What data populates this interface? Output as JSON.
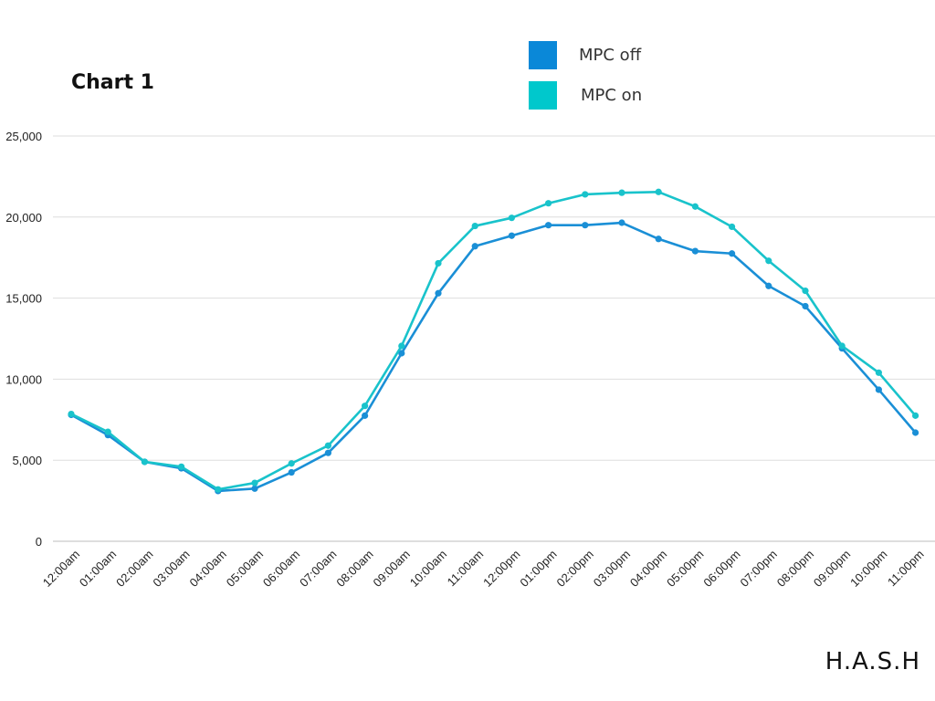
{
  "chart_data": {
    "type": "line",
    "title": "Chart 1",
    "xlabel": "",
    "ylabel": "",
    "ylim": [
      0,
      25000
    ],
    "yticks": [
      0,
      5000,
      10000,
      15000,
      20000,
      25000
    ],
    "ytick_labels": [
      "0",
      "5,000",
      "10,000",
      "15,000",
      "20,000",
      "25,000"
    ],
    "grid": true,
    "legend_position": "top-right",
    "categories": [
      "12:00am",
      "01:00am",
      "02:00am",
      "03:00am",
      "04:00am",
      "05:00am",
      "06:00am",
      "07:00am",
      "08:00am",
      "09:00am",
      "10:00am",
      "11:00am",
      "12:00pm",
      "01:00pm",
      "02:00pm",
      "03:00pm",
      "04:00pm",
      "05:00pm",
      "06:00pm",
      "07:00pm",
      "08:00pm",
      "09:00pm",
      "10:00pm",
      "11:00pm"
    ],
    "series": [
      {
        "name": "MPC off",
        "color": "#1a8fd6",
        "values": [
          7800,
          6550,
          4900,
          4500,
          3100,
          3250,
          4250,
          5450,
          7750,
          11600,
          15300,
          18200,
          18850,
          19500,
          19500,
          19650,
          18650,
          17900,
          17750,
          15750,
          14500,
          11900,
          9350,
          6700
        ]
      },
      {
        "name": "MPC on",
        "color": "#19c3cb",
        "values": [
          7850,
          6750,
          4900,
          4600,
          3200,
          3600,
          4800,
          5900,
          8350,
          12050,
          17150,
          19450,
          19950,
          20850,
          21400,
          21500,
          21550,
          20650,
          19400,
          17300,
          15450,
          12050,
          10400,
          7750
        ]
      }
    ]
  },
  "legend": {
    "items": [
      {
        "label": "MPC off",
        "color": "#0a88d8"
      },
      {
        "label": "MPC on",
        "color": "#00c8cc"
      }
    ]
  },
  "branding": {
    "text": "H.A.S.H"
  }
}
